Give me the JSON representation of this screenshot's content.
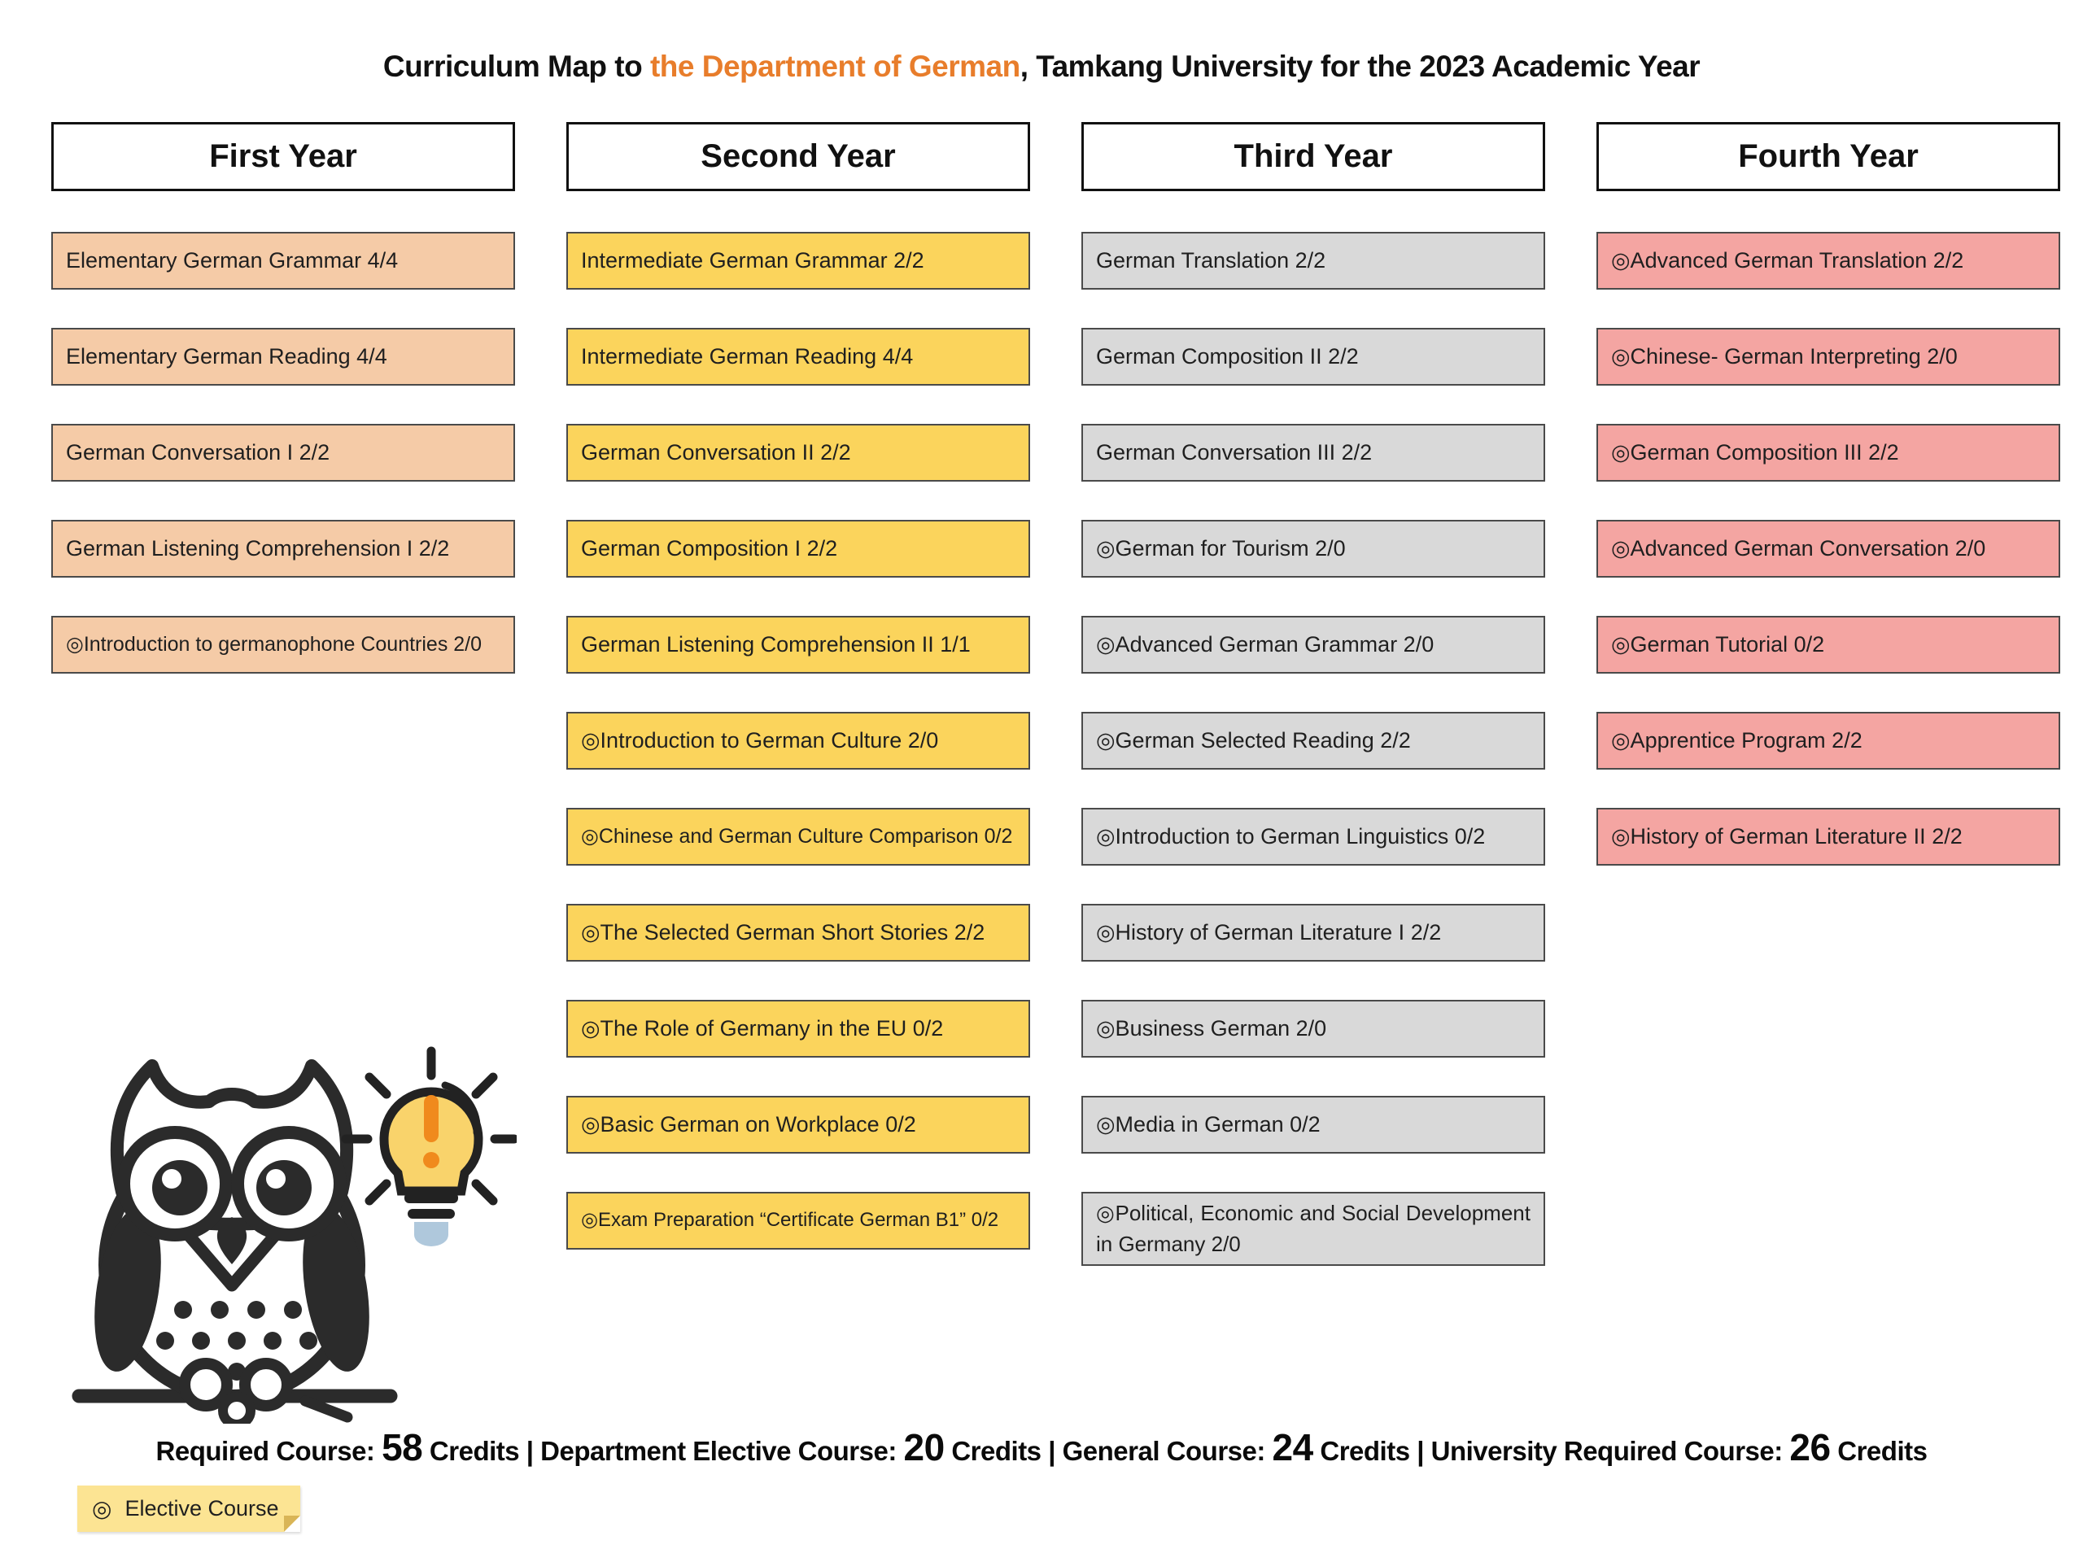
{
  "title": {
    "prefix": "Curriculum Map to ",
    "highlight": "the Department of German",
    "suffix": ", Tamkang University for the 2023 Academic Year",
    "highlight_color": "#E87D2B"
  },
  "columns": [
    {
      "key": "first-year",
      "header": "First Year",
      "box_color": "#F5CBA7",
      "courses": [
        "Elementary German Grammar 4/4",
        "Elementary German Reading 4/4",
        "German Conversation I 2/2",
        "German Listening Comprehension I 2/2",
        "◎Introduction to germanophone Countries 2/0"
      ]
    },
    {
      "key": "second-year",
      "header": "Second Year",
      "box_color": "#FBD45C",
      "courses": [
        "Intermediate German Grammar 2/2",
        "Intermediate German Reading 4/4",
        "German Conversation II 2/2",
        "German Composition I 2/2",
        "German Listening Comprehension II 1/1",
        "◎Introduction to German Culture 2/0",
        "◎Chinese and German Culture Comparison 0/2",
        "◎The Selected German Short Stories 2/2",
        "◎The Role of Germany in the EU 0/2",
        "◎Basic German on Workplace 0/2",
        "◎Exam Preparation “Certificate German B1” 0/2"
      ]
    },
    {
      "key": "third-year",
      "header": "Third Year",
      "box_color": "#D9D9D9",
      "courses": [
        "German Translation 2/2",
        "German Composition II 2/2",
        "German Conversation III 2/2",
        "◎German for Tourism 2/0",
        "◎Advanced German Grammar 2/0",
        "◎German Selected Reading 2/2",
        "◎Introduction to German Linguistics 0/2",
        "◎History of German Literature I 2/2",
        "◎Business German 2/0",
        "◎Media in German 0/2",
        "◎Political, Economic and Social Development in Germany 2/0"
      ]
    },
    {
      "key": "fourth-year",
      "header": "Fourth Year",
      "box_color": "#F4A5A2",
      "courses": [
        "◎Advanced German Translation 2/2",
        "◎Chinese- German Interpreting 2/0",
        "◎German Composition III 2/2",
        "◎Advanced German Conversation 2/0",
        "◎German Tutorial 0/2",
        "◎Apprentice Program 2/2",
        "◎History of German Literature II 2/2"
      ]
    }
  ],
  "summary": {
    "segments": [
      {
        "text": "Required Course: ",
        "emphasis": false
      },
      {
        "text": "58",
        "emphasis": true
      },
      {
        "text": " Credits | Department Elective Course: ",
        "emphasis": false
      },
      {
        "text": "20",
        "emphasis": true
      },
      {
        "text": " Credits | General Course: ",
        "emphasis": false
      },
      {
        "text": "24",
        "emphasis": true
      },
      {
        "text": " Credits | University Required Course: ",
        "emphasis": false
      },
      {
        "text": "26",
        "emphasis": true
      },
      {
        "text": " Credits",
        "emphasis": false
      }
    ]
  },
  "legend": {
    "symbol": "◎",
    "label": "Elective Course",
    "note_color": "#FCE493"
  },
  "illustrations": {
    "owl": "owl-line-art",
    "lightbulb": "lightbulb-idea"
  }
}
